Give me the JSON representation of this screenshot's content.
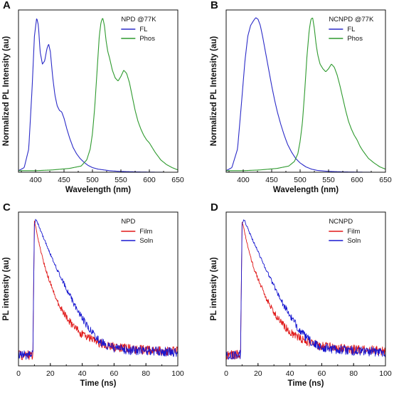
{
  "chart_data": [
    {
      "panel": "A",
      "type": "line",
      "legend_title": "NPD @77K",
      "legend_position": "top-right",
      "xlabel": "Wavelength (nm)",
      "ylabel": "Normalized PL Intensity (au)",
      "xlim": [
        370,
        650
      ],
      "ylim": [
        0,
        1.05
      ],
      "xticks": [
        400,
        450,
        500,
        550,
        600,
        650
      ],
      "yticks": [],
      "grid": false,
      "series": [
        {
          "name": "FL",
          "color": "#2b2bc8",
          "x": [
            370,
            380,
            388,
            394,
            398,
            402,
            405,
            408,
            412,
            416,
            420,
            423,
            426,
            430,
            434,
            438,
            442,
            446,
            450,
            455,
            460,
            466,
            472,
            478,
            485,
            492,
            500,
            510,
            520,
            530,
            545,
            560,
            580,
            600,
            625,
            650
          ],
          "y": [
            0.01,
            0.03,
            0.15,
            0.55,
            0.88,
            1.0,
            0.95,
            0.78,
            0.7,
            0.72,
            0.8,
            0.83,
            0.78,
            0.62,
            0.5,
            0.43,
            0.4,
            0.39,
            0.35,
            0.28,
            0.22,
            0.16,
            0.12,
            0.09,
            0.065,
            0.045,
            0.03,
            0.02,
            0.015,
            0.01,
            0.006,
            0.004,
            0.002,
            0.001,
            0.0,
            0.0
          ]
        },
        {
          "name": "Phos",
          "color": "#2e9a2e",
          "x": [
            370,
            400,
            430,
            460,
            480,
            490,
            496,
            500,
            504,
            508,
            512,
            515,
            518,
            521,
            524,
            527,
            530,
            535,
            540,
            545,
            550,
            555,
            560,
            565,
            570,
            575,
            580,
            585,
            590,
            595,
            600,
            605,
            610,
            620,
            630,
            640,
            650
          ],
          "y": [
            0.01,
            0.01,
            0.015,
            0.025,
            0.04,
            0.08,
            0.15,
            0.25,
            0.42,
            0.65,
            0.88,
            0.97,
            1.0,
            0.95,
            0.85,
            0.78,
            0.74,
            0.66,
            0.61,
            0.59,
            0.62,
            0.66,
            0.64,
            0.58,
            0.49,
            0.4,
            0.33,
            0.28,
            0.24,
            0.21,
            0.19,
            0.16,
            0.13,
            0.08,
            0.05,
            0.03,
            0.015
          ]
        }
      ]
    },
    {
      "panel": "B",
      "type": "line",
      "legend_title": "NCNPD @77K",
      "legend_position": "top-right",
      "xlabel": "Wavelength (nm)",
      "ylabel": "Normalized PL Intensity (au)",
      "xlim": [
        370,
        650
      ],
      "ylim": [
        0,
        1.05
      ],
      "xticks": [
        400,
        450,
        500,
        550,
        600,
        650
      ],
      "yticks": [],
      "grid": false,
      "series": [
        {
          "name": "FL",
          "color": "#2b2bc8",
          "x": [
            370,
            380,
            390,
            397,
            403,
            408,
            413,
            418,
            422,
            426,
            430,
            434,
            438,
            442,
            446,
            450,
            455,
            460,
            466,
            472,
            478,
            485,
            492,
            500,
            510,
            520,
            530,
            545,
            560,
            580,
            600,
            625,
            650
          ],
          "y": [
            0.01,
            0.03,
            0.15,
            0.45,
            0.72,
            0.88,
            0.95,
            0.98,
            1.0,
            0.99,
            0.95,
            0.88,
            0.8,
            0.72,
            0.64,
            0.56,
            0.47,
            0.39,
            0.31,
            0.24,
            0.18,
            0.13,
            0.09,
            0.06,
            0.035,
            0.02,
            0.012,
            0.007,
            0.004,
            0.002,
            0.001,
            0.0,
            0.0
          ]
        },
        {
          "name": "Phos",
          "color": "#2e9a2e",
          "x": [
            370,
            400,
            430,
            460,
            480,
            490,
            496,
            500,
            504,
            508,
            512,
            516,
            519,
            522,
            525,
            528,
            531,
            535,
            540,
            545,
            550,
            555,
            560,
            565,
            570,
            575,
            580,
            585,
            590,
            595,
            600,
            605,
            610,
            620,
            630,
            640,
            650
          ],
          "y": [
            0.01,
            0.01,
            0.015,
            0.025,
            0.04,
            0.07,
            0.12,
            0.2,
            0.32,
            0.52,
            0.75,
            0.92,
            0.99,
            1.0,
            0.93,
            0.83,
            0.76,
            0.7,
            0.67,
            0.65,
            0.67,
            0.7,
            0.68,
            0.63,
            0.56,
            0.48,
            0.4,
            0.33,
            0.28,
            0.24,
            0.21,
            0.17,
            0.14,
            0.09,
            0.06,
            0.035,
            0.02
          ]
        }
      ]
    },
    {
      "panel": "C",
      "type": "line",
      "legend_title": "NPD",
      "legend_position": "top-right",
      "xlabel": "Time (ns)",
      "ylabel": "PL intensity (au)",
      "xlim": [
        0,
        100
      ],
      "ylim": [
        -0.08,
        1.05
      ],
      "xticks": [
        0,
        20,
        40,
        60,
        80,
        100
      ],
      "yticks": [],
      "grid": false,
      "noise": 0.035,
      "series": [
        {
          "name": "Film",
          "color": "#e01818",
          "x": [
            0,
            9,
            10,
            11,
            14,
            17,
            20,
            25,
            30,
            35,
            40,
            45,
            50,
            55,
            60,
            70,
            80,
            90,
            100
          ],
          "y": [
            0.0,
            0.0,
            0.98,
            0.93,
            0.76,
            0.63,
            0.53,
            0.38,
            0.28,
            0.2,
            0.15,
            0.12,
            0.09,
            0.07,
            0.06,
            0.045,
            0.035,
            0.03,
            0.025
          ]
        },
        {
          "name": "Soln",
          "color": "#1818d0",
          "x": [
            0,
            9,
            10,
            11,
            15,
            20,
            25,
            30,
            35,
            40,
            45,
            50,
            55,
            60,
            70,
            80,
            90,
            100
          ],
          "y": [
            0.0,
            0.0,
            0.96,
            1.0,
            0.88,
            0.74,
            0.61,
            0.49,
            0.37,
            0.27,
            0.18,
            0.11,
            0.07,
            0.05,
            0.035,
            0.03,
            0.025,
            0.02
          ]
        }
      ]
    },
    {
      "panel": "D",
      "type": "line",
      "legend_title": "NCNPD",
      "legend_position": "top-right",
      "xlabel": "Time (ns)",
      "ylabel": "PL intensity (au)",
      "xlim": [
        0,
        100
      ],
      "ylim": [
        -0.08,
        1.05
      ],
      "xticks": [
        0,
        20,
        40,
        60,
        80,
        100
      ],
      "yticks": [],
      "grid": false,
      "noise": 0.035,
      "series": [
        {
          "name": "Film",
          "color": "#e01818",
          "x": [
            0,
            9,
            10,
            11,
            14,
            17,
            20,
            25,
            30,
            35,
            40,
            45,
            50,
            55,
            60,
            70,
            80,
            90,
            100
          ],
          "y": [
            0.0,
            0.0,
            0.98,
            0.93,
            0.78,
            0.65,
            0.56,
            0.42,
            0.31,
            0.23,
            0.17,
            0.13,
            0.1,
            0.08,
            0.065,
            0.05,
            0.04,
            0.035,
            0.03
          ]
        },
        {
          "name": "Soln",
          "color": "#1818d0",
          "x": [
            0,
            9,
            10,
            11,
            15,
            20,
            25,
            30,
            35,
            40,
            45,
            50,
            55,
            60,
            70,
            80,
            90,
            100
          ],
          "y": [
            0.0,
            0.0,
            0.96,
            1.0,
            0.89,
            0.76,
            0.63,
            0.51,
            0.39,
            0.29,
            0.2,
            0.13,
            0.08,
            0.055,
            0.04,
            0.03,
            0.025,
            0.02
          ]
        }
      ]
    }
  ]
}
